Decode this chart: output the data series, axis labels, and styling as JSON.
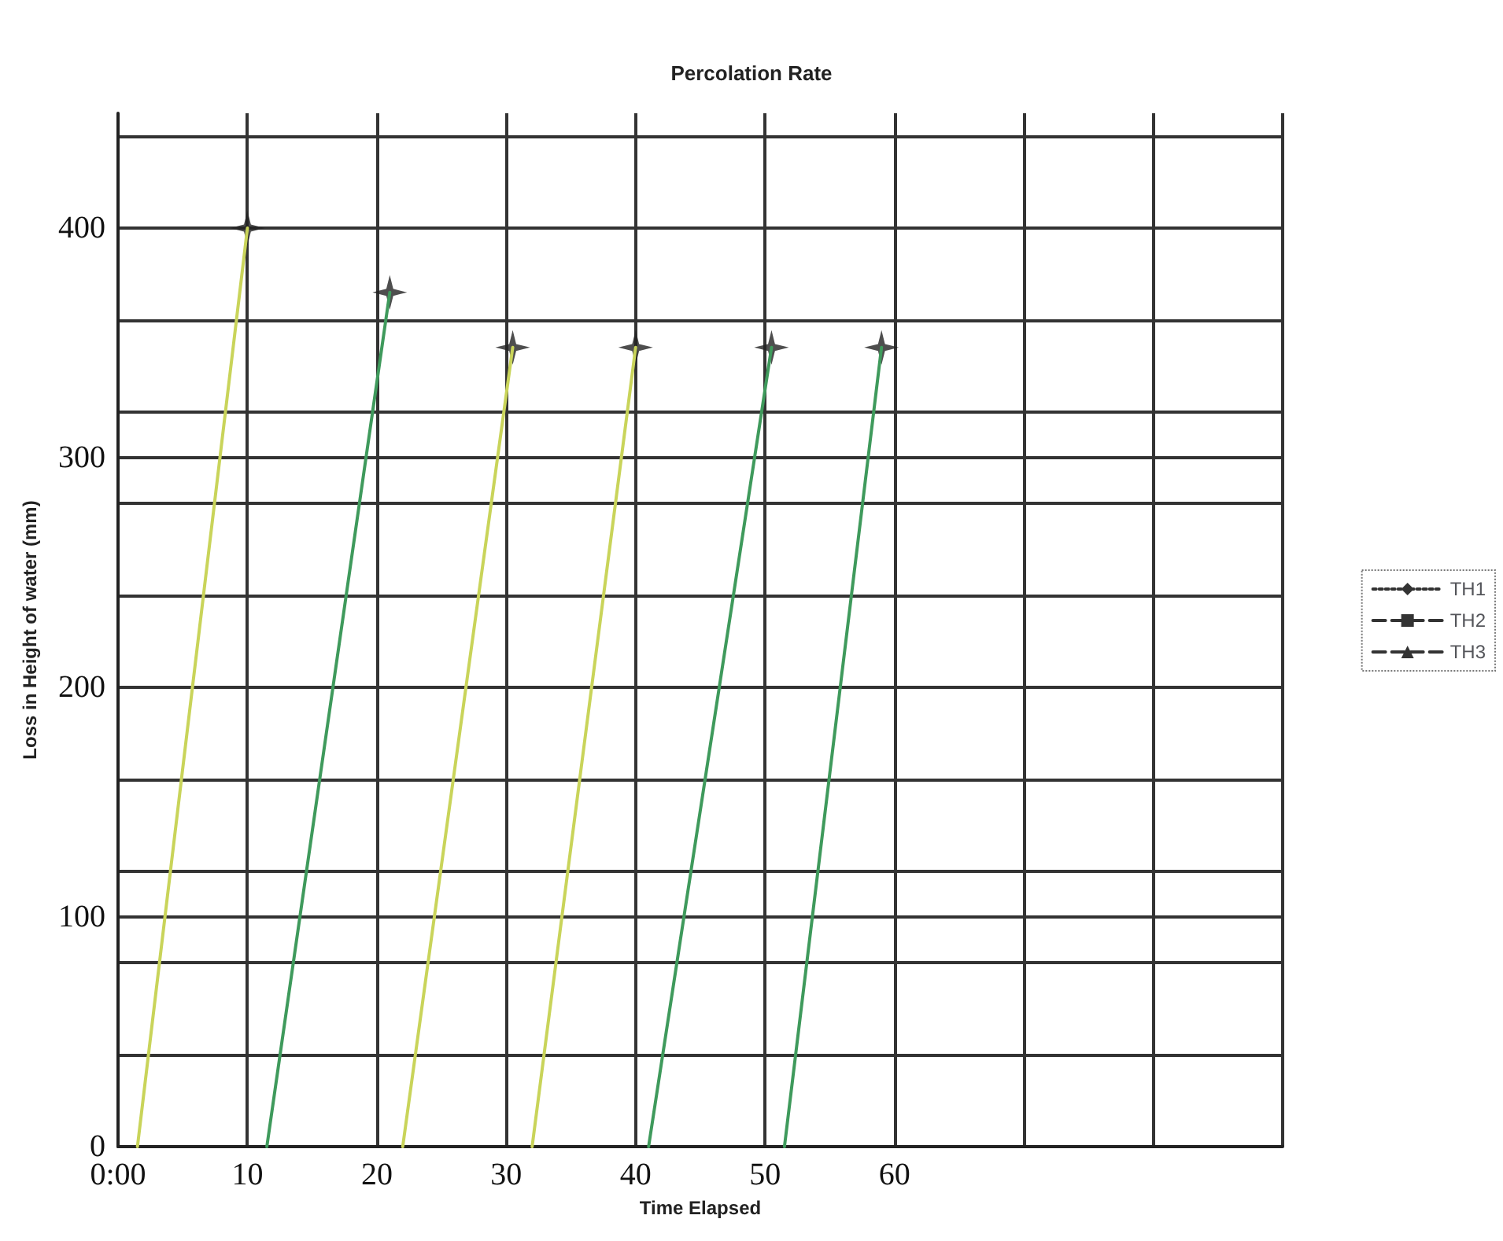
{
  "chart_data": {
    "type": "line",
    "title": "Percolation Rate",
    "xlabel": "Time Elapsed",
    "ylabel": "Loss in Height of water (mm)",
    "xlim": [
      0,
      90
    ],
    "xticks": [
      {
        "value": 0,
        "label": "0:00"
      },
      10,
      20,
      30,
      40,
      50,
      60,
      {
        "value": 70,
        "label": null
      },
      {
        "value": 80,
        "label": null
      },
      {
        "value": 90,
        "label": null
      }
    ],
    "ylim": [
      0,
      450
    ],
    "yticks": [
      0,
      {
        "value": 40,
        "label": null
      },
      {
        "value": 80,
        "label": null
      },
      100,
      {
        "value": 120,
        "label": null
      },
      {
        "value": 160,
        "label": null
      },
      200,
      {
        "value": 240,
        "label": null
      },
      {
        "value": 280,
        "label": null
      },
      300,
      {
        "value": 320,
        "label": null
      },
      {
        "value": 360,
        "label": null
      },
      400,
      {
        "value": 440,
        "label": null
      }
    ],
    "grid": true,
    "legend": "right",
    "line_style": "solid",
    "marker": "none",
    "series": [
      {
        "color": "#c9d45a",
        "x": [
          1.5,
          10
        ],
        "values": [
          0,
          400
        ]
      },
      {
        "color": "#3f9a5c",
        "x": [
          11.5,
          21
        ],
        "values": [
          0,
          372
        ]
      },
      {
        "color": "#c9d45a",
        "x": [
          22,
          30.5
        ],
        "values": [
          0,
          348
        ]
      },
      {
        "color": "#c9d45a",
        "x": [
          32,
          40
        ],
        "values": [
          0,
          348
        ]
      },
      {
        "color": "#3f9a5c",
        "x": [
          41,
          50.5
        ],
        "values": [
          0,
          348
        ]
      },
      {
        "color": "#3f9a5c",
        "x": [
          51.5,
          59
        ],
        "values": [
          0,
          348
        ]
      },
      {
        "type": "scatter",
        "marker": "star",
        "color": "#222222",
        "x": [
          10,
          21,
          30.5,
          40,
          50.5,
          59
        ],
        "values": [
          400,
          372,
          348,
          348,
          348,
          348
        ]
      },
      {
        "name": "TH1",
        "color": "#333333",
        "line_style": "dotted",
        "marker": "diamond"
      },
      {
        "name": "TH2",
        "color": "#333333",
        "line_style": "dashed",
        "marker": "square"
      },
      {
        "name": "TH3",
        "color": "#333333",
        "line_style": "dashed",
        "marker": "triangle"
      }
    ]
  }
}
